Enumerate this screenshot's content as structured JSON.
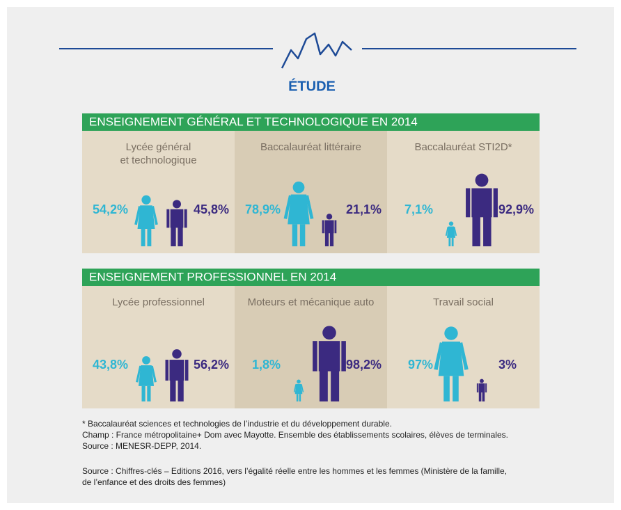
{
  "header": {
    "title": "ÉTUDE"
  },
  "sections": [
    {
      "title": "ENSEIGNEMENT GÉNÉRAL ET TECHNOLOGIQUE EN 2014",
      "panels": [
        {
          "label_lines": [
            "Lycée général",
            "et technologique"
          ],
          "women": {
            "value": 54.2,
            "label": "54,2%"
          },
          "men": {
            "value": 45.8,
            "label": "45,8%"
          }
        },
        {
          "label_lines": [
            "Baccalauréat littéraire"
          ],
          "women": {
            "value": 78.9,
            "label": "78,9%"
          },
          "men": {
            "value": 21.1,
            "label": "21,1%"
          }
        },
        {
          "label_lines": [
            "Baccalauréat STI2D*"
          ],
          "women": {
            "value": 7.1,
            "label": "7,1%"
          },
          "men": {
            "value": 92.9,
            "label": "92,9%"
          }
        }
      ]
    },
    {
      "title": "ENSEIGNEMENT PROFESSIONNEL EN 2014",
      "panels": [
        {
          "label_lines": [
            "Lycée professionnel"
          ],
          "women": {
            "value": 43.8,
            "label": "43,8%"
          },
          "men": {
            "value": 56.2,
            "label": "56,2%"
          }
        },
        {
          "label_lines": [
            "Moteurs et mécanique auto"
          ],
          "women": {
            "value": 1.8,
            "label": "1,8%"
          },
          "men": {
            "value": 98.2,
            "label": "98,2%"
          }
        },
        {
          "label_lines": [
            "Travail social"
          ],
          "women": {
            "value": 97,
            "label": "97%"
          },
          "men": {
            "value": 3,
            "label": "3%"
          }
        }
      ]
    }
  ],
  "notes": [
    "* Baccalauréat sciences et technologies de l’industrie et du développement durable.",
    "Champ : France métropolitaine+ Dom avec Mayotte. Ensemble des établissements scolaires, élèves de terminales.",
    "Source : MENESR-DEPP, 2014."
  ],
  "source": [
    "Source : Chiffres-clés – Editions 2016, vers l’égalité réelle entre les hommes et les femmes (Ministère de la famille,",
    "de l’enfance et des droits des femmes)"
  ]
}
